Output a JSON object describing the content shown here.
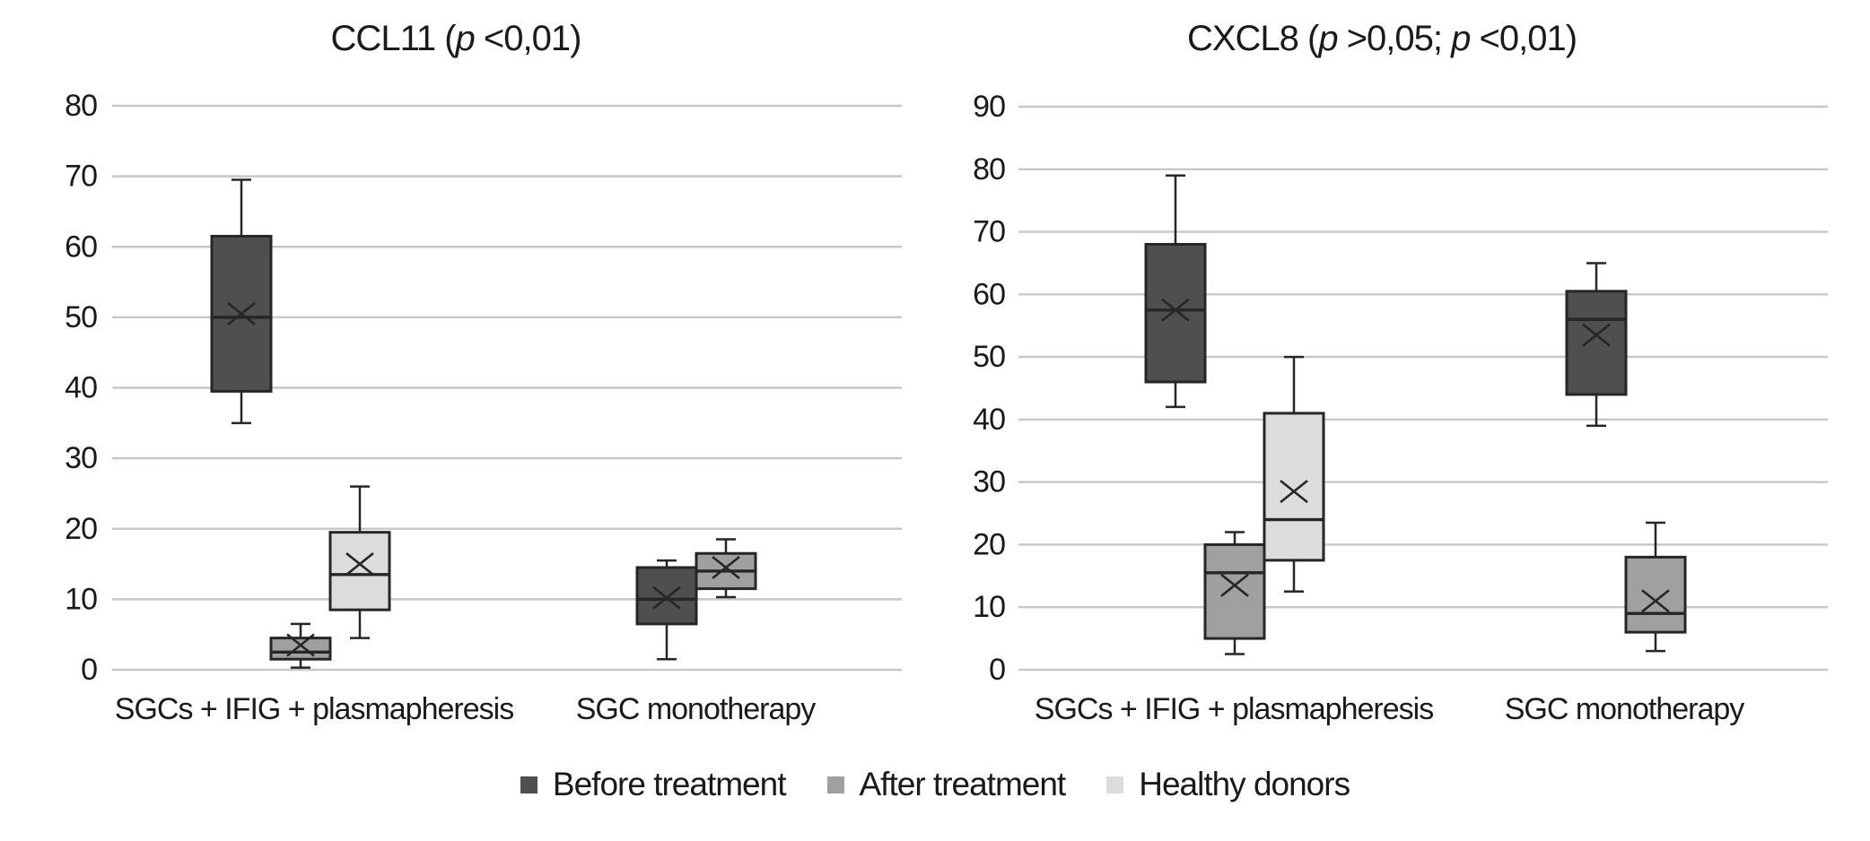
{
  "colors": {
    "background": "#ffffff",
    "gridline": "#c7c7c7",
    "box_border": "#262626",
    "text": "#1a1a1a",
    "before_fill": "#4f4f4f",
    "after_fill": "#a0a0a0",
    "healthy_fill": "#dcdcdc"
  },
  "legend": {
    "position": "bottom",
    "items": [
      {
        "label": "Before treatment",
        "color": "#4f4f4f"
      },
      {
        "label": "After treatment",
        "color": "#a0a0a0"
      },
      {
        "label": "Healthy donors",
        "color": "#dcdcdc"
      }
    ]
  },
  "chart_data": [
    {
      "type": "boxplot",
      "title_plain": "CCL11 (p <0,01)",
      "title_segments": [
        {
          "text": "CCL11 ("
        },
        {
          "text": "p",
          "italic": true
        },
        {
          "text": " <0,01)"
        }
      ],
      "ylim": [
        0,
        80
      ],
      "yticks": [
        0,
        10,
        20,
        30,
        40,
        50,
        60,
        70,
        80
      ],
      "grid": true,
      "categories": [
        "SGCs + IFIG + plasmapheresis",
        "SGC monotherapy"
      ],
      "series": [
        {
          "name": "Before treatment",
          "fill": "#4f4f4f",
          "boxes": [
            {
              "category": 0,
              "whisker_low": 35,
              "q1": 39.5,
              "median": 50,
              "mean": 50.5,
              "q3": 61.5,
              "whisker_high": 69.5
            },
            {
              "category": 1,
              "whisker_low": 1.5,
              "q1": 6.5,
              "median": 10,
              "mean": 10.2,
              "q3": 14.5,
              "whisker_high": 15.5
            }
          ]
        },
        {
          "name": "After treatment",
          "fill": "#a0a0a0",
          "boxes": [
            {
              "category": 0,
              "whisker_low": 0.3,
              "q1": 1.5,
              "median": 2.5,
              "mean": 3.5,
              "q3": 4.5,
              "whisker_high": 6.5
            },
            {
              "category": 1,
              "whisker_low": 10.3,
              "q1": 11.5,
              "median": 14,
              "mean": 14.5,
              "q3": 16.5,
              "whisker_high": 18.5
            }
          ]
        },
        {
          "name": "Healthy donors",
          "fill": "#dcdcdc",
          "boxes": [
            {
              "category": 0,
              "whisker_low": 4.5,
              "q1": 8.5,
              "median": 13.5,
              "mean": 15,
              "q3": 19.5,
              "whisker_high": 26
            }
          ]
        }
      ]
    },
    {
      "type": "boxplot",
      "title_plain": "CXCL8 (p >0,05; p <0,01)",
      "title_segments": [
        {
          "text": "CXCL8 ("
        },
        {
          "text": "p",
          "italic": true
        },
        {
          "text": " >0,05; "
        },
        {
          "text": "p",
          "italic": true
        },
        {
          "text": " <0,01)"
        }
      ],
      "ylim": [
        0,
        90
      ],
      "yticks": [
        0,
        10,
        20,
        30,
        40,
        50,
        60,
        70,
        80,
        90
      ],
      "grid": true,
      "categories": [
        "SGCs + IFIG + plasmapheresis",
        "SGC monotherapy"
      ],
      "series": [
        {
          "name": "Before treatment",
          "fill": "#4f4f4f",
          "boxes": [
            {
              "category": 0,
              "whisker_low": 42,
              "q1": 46,
              "median": 57.5,
              "mean": 57.5,
              "q3": 68,
              "whisker_high": 79
            },
            {
              "category": 1,
              "whisker_low": 39,
              "q1": 44,
              "median": 56,
              "mean": 53.5,
              "q3": 60.5,
              "whisker_high": 65
            }
          ]
        },
        {
          "name": "After treatment",
          "fill": "#a0a0a0",
          "boxes": [
            {
              "category": 0,
              "whisker_low": 2.5,
              "q1": 5,
              "median": 15.5,
              "mean": 13.5,
              "q3": 20,
              "whisker_high": 22
            },
            {
              "category": 1,
              "whisker_low": 3,
              "q1": 6,
              "median": 9,
              "mean": 11,
              "q3": 18,
              "whisker_high": 23.5
            }
          ]
        },
        {
          "name": "Healthy donors",
          "fill": "#dcdcdc",
          "boxes": [
            {
              "category": 0,
              "whisker_low": 12.5,
              "q1": 17.5,
              "median": 24,
              "mean": 28.5,
              "q3": 41,
              "whisker_high": 50
            }
          ]
        }
      ]
    }
  ]
}
